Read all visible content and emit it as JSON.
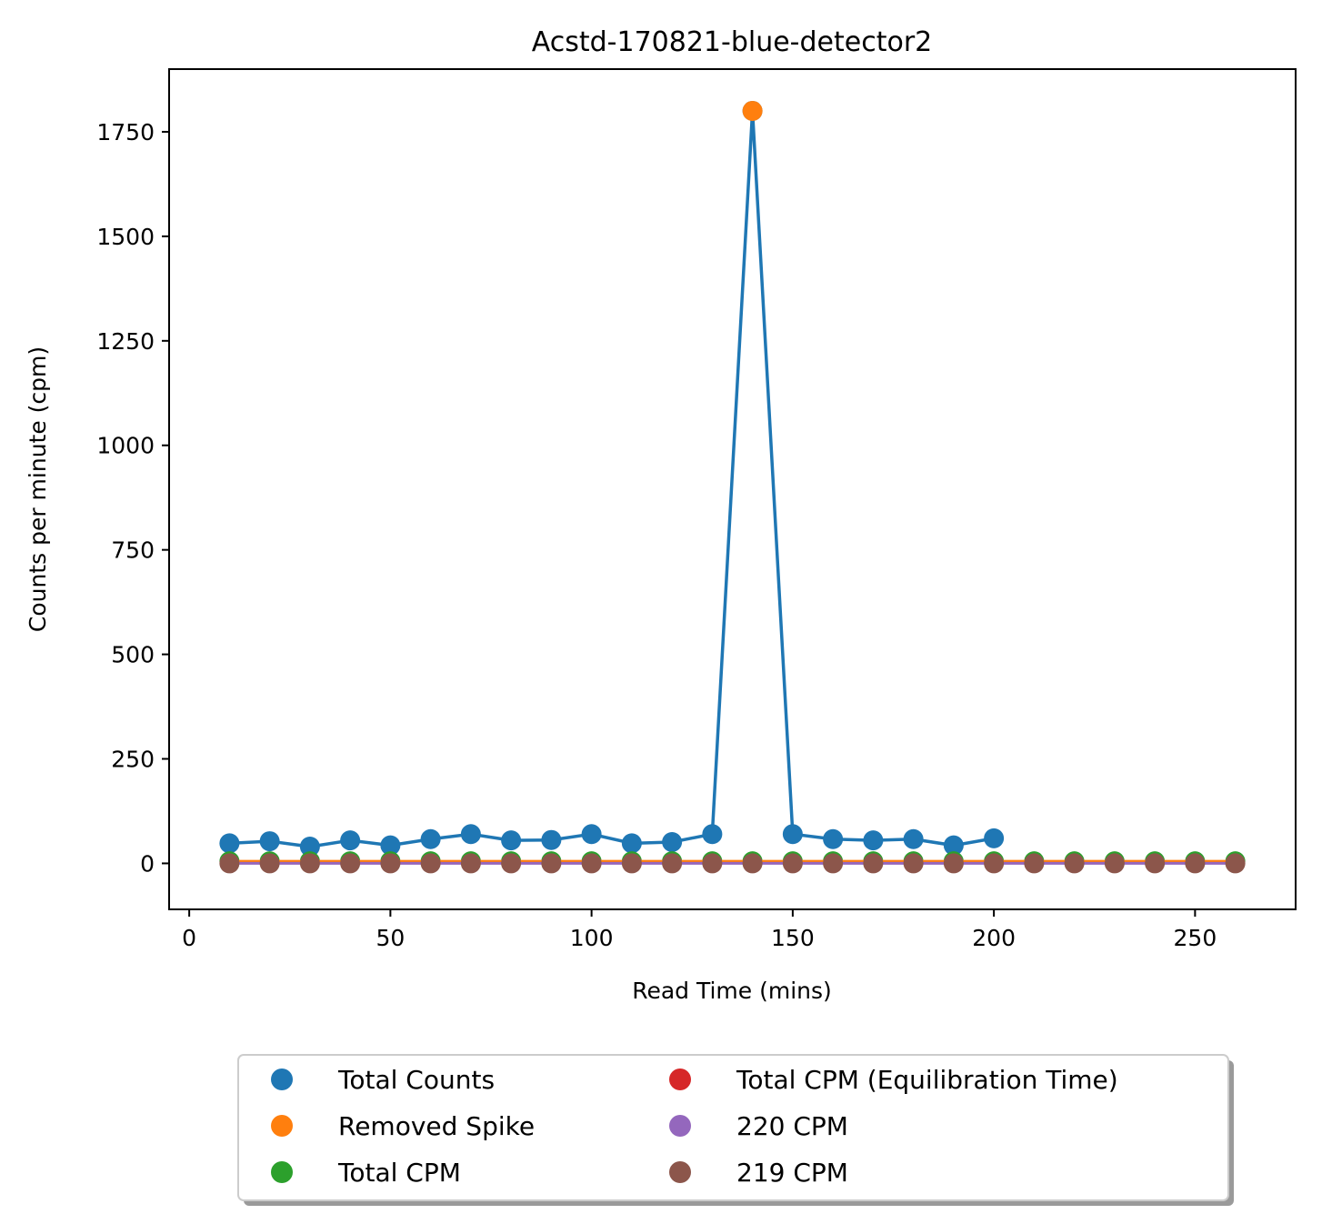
{
  "chart_data": {
    "type": "scatter",
    "title": "Acstd-170821-blue-detector2",
    "xlabel": "Read Time (mins)",
    "ylabel": "Counts per minute (cpm)",
    "xlim": [
      -5,
      275
    ],
    "ylim": [
      -110,
      1900
    ],
    "x_ticks": [
      0,
      50,
      100,
      150,
      200,
      250
    ],
    "y_ticks": [
      0,
      250,
      500,
      750,
      1000,
      1250,
      1500,
      1750
    ],
    "grid": false,
    "legend_position": "bottom-center",
    "series": [
      {
        "name": "Total Counts",
        "color": "#1f77b4",
        "line": true,
        "x": [
          10,
          20,
          30,
          40,
          50,
          60,
          70,
          80,
          90,
          100,
          110,
          120,
          130,
          140,
          150,
          160,
          170,
          180,
          190,
          200
        ],
        "y": [
          48,
          53,
          40,
          55,
          43,
          58,
          70,
          55,
          56,
          70,
          48,
          51,
          70,
          1800,
          70,
          58,
          55,
          58,
          43,
          60
        ]
      },
      {
        "name": "Removed Spike",
        "color": "#ff7f0e",
        "line": false,
        "x": [
          140
        ],
        "y": [
          1800
        ]
      },
      {
        "name": "Total CPM",
        "color": "#2ca02c",
        "line": false,
        "x": [
          10,
          20,
          30,
          40,
          50,
          60,
          70,
          80,
          90,
          100,
          110,
          120,
          130,
          140,
          150,
          160,
          170,
          180,
          190,
          200,
          210,
          220,
          230,
          240,
          250,
          260
        ],
        "y": [
          5,
          5,
          5,
          5,
          5,
          5,
          5,
          5,
          5,
          5,
          5,
          5,
          5,
          5,
          5,
          5,
          5,
          5,
          5,
          5,
          5,
          5,
          5,
          5,
          5,
          5
        ]
      },
      {
        "name": "Total CPM (Equilibration Time)",
        "color": "#d62728",
        "line": false,
        "x": [],
        "y": []
      },
      {
        "name": "220 CPM",
        "color": "#9467bd",
        "line": false,
        "x": [],
        "y": []
      },
      {
        "name": "219 CPM",
        "color": "#8c564b",
        "line": false,
        "x": [
          10,
          20,
          30,
          40,
          50,
          60,
          70,
          80,
          90,
          100,
          110,
          120,
          130,
          140,
          150,
          160,
          170,
          180,
          190,
          200,
          210,
          220,
          230,
          240,
          250,
          260
        ],
        "y": [
          0,
          0,
          0,
          0,
          0,
          0,
          0,
          0,
          0,
          0,
          0,
          0,
          0,
          0,
          0,
          0,
          0,
          0,
          0,
          0,
          0,
          0,
          0,
          0,
          0,
          0
        ]
      }
    ],
    "reference_lines": [
      {
        "color": "#ff7f0e",
        "x": [
          10,
          260
        ],
        "y": [
          5,
          5
        ]
      },
      {
        "color": "#9467bd",
        "x": [
          10,
          260
        ],
        "y": [
          0,
          0
        ]
      }
    ],
    "legend_order": [
      [
        "Total Counts",
        "Total CPM (Equilibration Time)"
      ],
      [
        "Removed Spike",
        "220 CPM"
      ],
      [
        "Total CPM",
        "219 CPM"
      ]
    ]
  }
}
